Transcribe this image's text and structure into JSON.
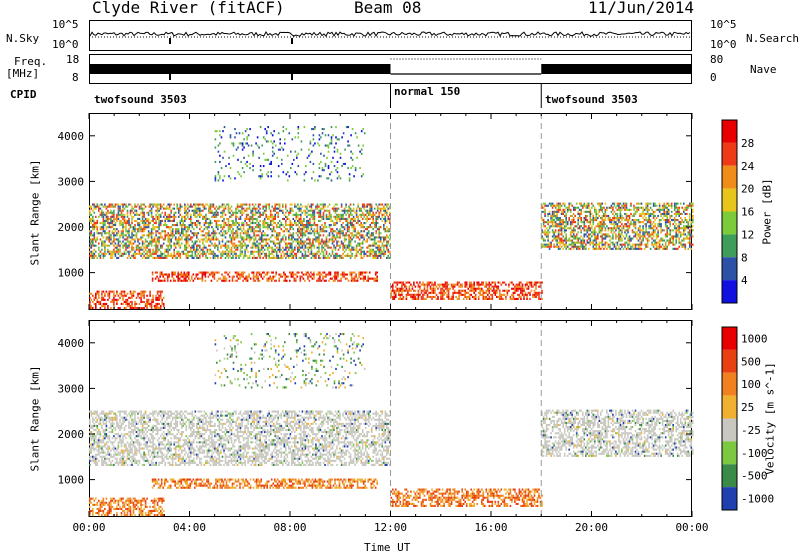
{
  "header": {
    "station": "Clyde River (fitACF)",
    "beam": "Beam 08",
    "date": "11/Jun/2014"
  },
  "side_labels": {
    "nsky": "N.Sky",
    "nsearch": "N.Search",
    "freq": "Freq.",
    "freq_unit": "[MHz]",
    "nave": "Nave",
    "cpid": "CPID"
  },
  "noise_axis": {
    "left_top": "10^5",
    "left_bottom": "10^0",
    "right_top": "10^5",
    "right_bottom": "10^0"
  },
  "freq_axis": {
    "left_top": "18",
    "left_bottom": "8",
    "right_top": "80",
    "right_bottom": "0"
  },
  "cpid_segments": [
    {
      "label": "twofsound 3503",
      "start": 0,
      "end": 12
    },
    {
      "label": "normal 150",
      "start": 12,
      "end": 18
    },
    {
      "label": "twofsound 3503",
      "start": 18,
      "end": 24
    }
  ],
  "chart_data": [
    {
      "type": "heatmap",
      "parameter": "Power",
      "ylabel": "Slant Range [km]",
      "colorbar_label": "Power [dB]",
      "x_range_hours": [
        0,
        24
      ],
      "ylim": [
        180,
        4500
      ],
      "y_ticks": [
        1000,
        2000,
        3000,
        4000
      ],
      "colorbar_ticks": [
        "4",
        "8",
        "12",
        "16",
        "20",
        "24",
        "28"
      ],
      "colors": [
        "#1010e0",
        "#2c52a8",
        "#3f9d5a",
        "#7ccb3b",
        "#e8c51a",
        "#f08c18",
        "#ee3a16",
        "#e80000"
      ],
      "scatter_bands": [
        {
          "range_km": [
            200,
            600
          ],
          "level": "high",
          "hours": [
            0,
            3
          ]
        },
        {
          "range_km": [
            800,
            1000
          ],
          "level": "high",
          "hours": [
            2.5,
            11.5
          ]
        },
        {
          "range_km": [
            1300,
            2500
          ],
          "level": "mid",
          "hours": [
            0,
            12
          ]
        },
        {
          "range_km": [
            400,
            800
          ],
          "level": "high",
          "hours": [
            12,
            18
          ]
        },
        {
          "range_km": [
            1500,
            2500
          ],
          "level": "mid",
          "hours": [
            18,
            24
          ]
        },
        {
          "range_km": [
            3000,
            4200
          ],
          "level": "low",
          "hours": [
            5,
            11
          ]
        }
      ]
    },
    {
      "type": "heatmap",
      "parameter": "Velocity",
      "ylabel": "Slant Range [km]",
      "colorbar_label": "Velocity [m s^-1]",
      "x_range_hours": [
        0,
        24
      ],
      "ylim": [
        180,
        4500
      ],
      "y_ticks": [
        1000,
        2000,
        3000,
        4000
      ],
      "colorbar_ticks": [
        "1000",
        "500",
        "100",
        "25",
        "-25",
        "-100",
        "-500",
        "-1000"
      ],
      "colors": [
        "#2040b0",
        "#3a8a48",
        "#7cc840",
        "#c8c8c0",
        "#f0b030",
        "#f08020",
        "#e84010",
        "#e80000"
      ],
      "xlabel": "Time UT",
      "x_ticks": [
        "00:00",
        "04:00",
        "08:00",
        "12:00",
        "16:00",
        "20:00",
        "00:00"
      ]
    }
  ]
}
